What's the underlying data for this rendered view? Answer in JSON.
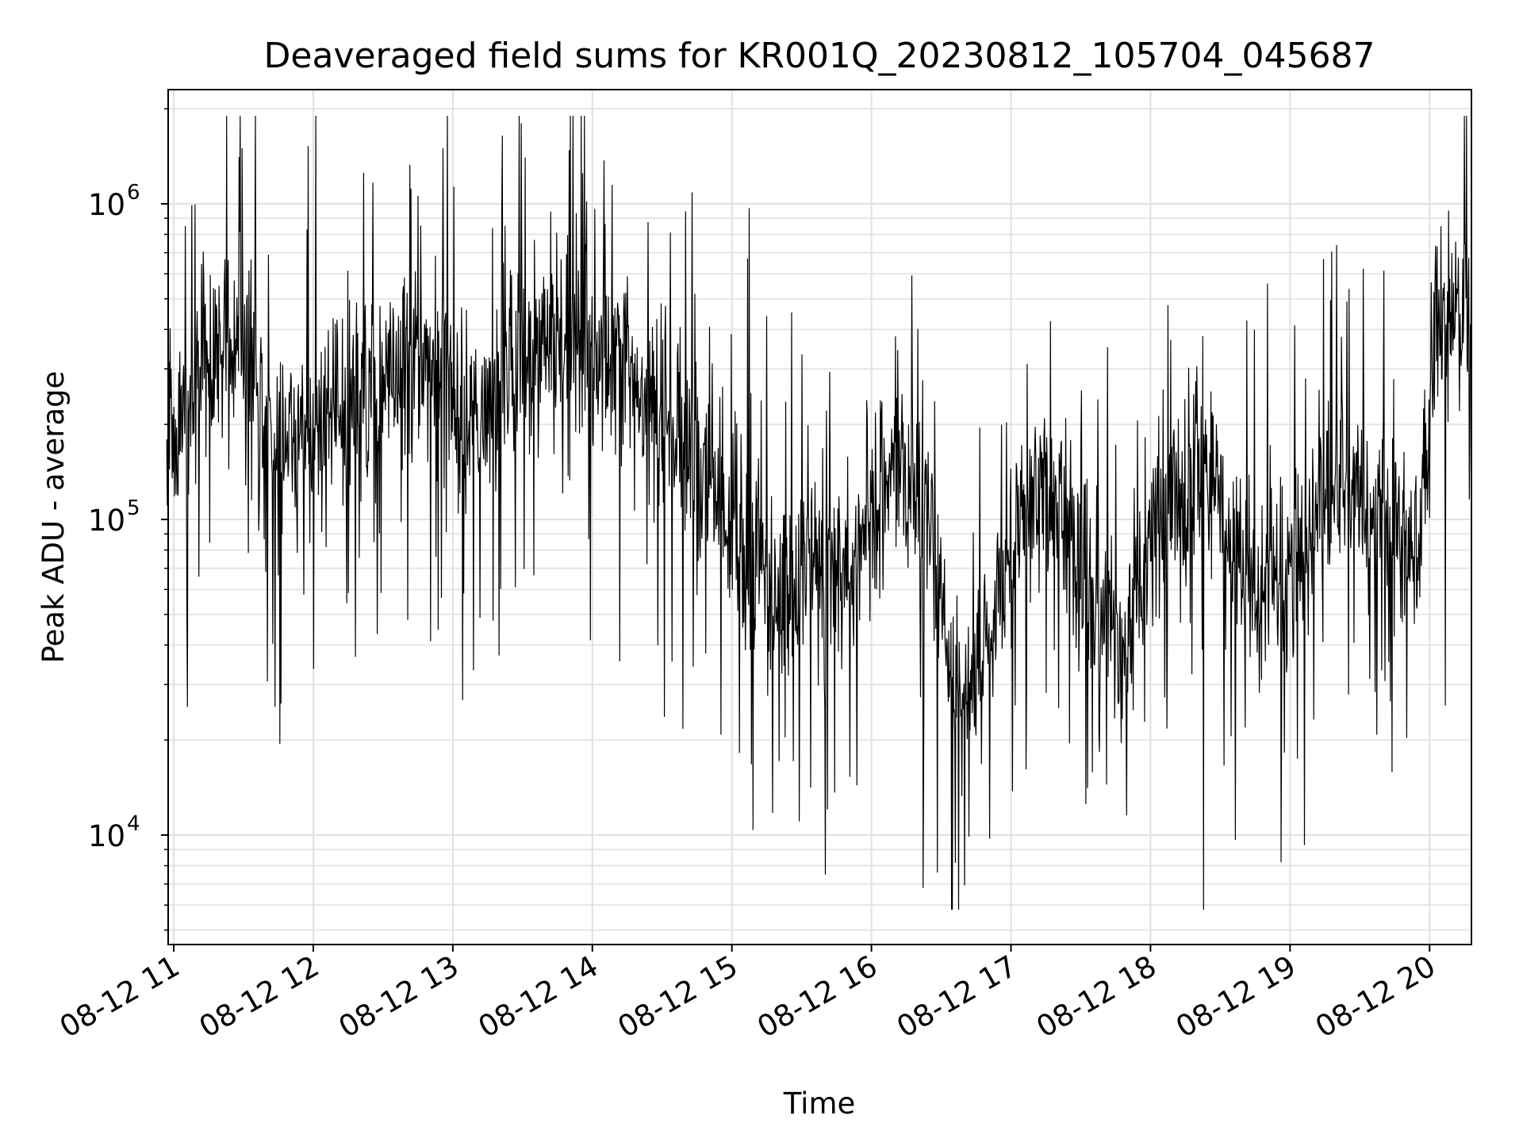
{
  "chart_data": {
    "type": "line",
    "title": "Deaveraged field sums for KR001Q_20230812_105704_045687",
    "xlabel": "Time",
    "ylabel": "Peak ADU - average",
    "yscale": "log",
    "ylim": [
      4500,
      2300000
    ],
    "xlim_hours": [
      10.96,
      20.3
    ],
    "grid": true,
    "x_ticks": [
      {
        "hour": 11,
        "label": "08-12 11"
      },
      {
        "hour": 12,
        "label": "08-12 12"
      },
      {
        "hour": 13,
        "label": "08-12 13"
      },
      {
        "hour": 14,
        "label": "08-12 14"
      },
      {
        "hour": 15,
        "label": "08-12 15"
      },
      {
        "hour": 16,
        "label": "08-12 16"
      },
      {
        "hour": 17,
        "label": "08-12 17"
      },
      {
        "hour": 18,
        "label": "08-12 18"
      },
      {
        "hour": 19,
        "label": "08-12 19"
      },
      {
        "hour": 20,
        "label": "08-12 20"
      }
    ],
    "y_ticks": [
      {
        "value": 10000,
        "base": "10",
        "exp": "4"
      },
      {
        "value": 100000,
        "base": "10",
        "exp": "5"
      },
      {
        "value": 1000000,
        "base": "10",
        "exp": "6"
      }
    ],
    "series": [
      {
        "name": "field sums",
        "color": "#000000",
        "x_start_hour": 10.95,
        "x_end_hour": 20.3,
        "trend": [
          {
            "hour": 10.95,
            "value": 180000
          },
          {
            "hour": 11.3,
            "value": 300000
          },
          {
            "hour": 11.5,
            "value": 400000
          },
          {
            "hour": 11.7,
            "value": 180000
          },
          {
            "hour": 12.0,
            "value": 200000
          },
          {
            "hour": 12.5,
            "value": 260000
          },
          {
            "hour": 12.9,
            "value": 350000
          },
          {
            "hour": 13.1,
            "value": 200000
          },
          {
            "hour": 13.5,
            "value": 330000
          },
          {
            "hour": 13.9,
            "value": 360000
          },
          {
            "hour": 14.2,
            "value": 300000
          },
          {
            "hour": 14.5,
            "value": 180000
          },
          {
            "hour": 14.8,
            "value": 140000
          },
          {
            "hour": 15.0,
            "value": 90000
          },
          {
            "hour": 15.3,
            "value": 60000
          },
          {
            "hour": 15.6,
            "value": 70000
          },
          {
            "hour": 15.9,
            "value": 80000
          },
          {
            "hour": 16.2,
            "value": 160000
          },
          {
            "hour": 16.4,
            "value": 100000
          },
          {
            "hour": 16.6,
            "value": 28000
          },
          {
            "hour": 16.8,
            "value": 35000
          },
          {
            "hour": 17.0,
            "value": 80000
          },
          {
            "hour": 17.3,
            "value": 130000
          },
          {
            "hour": 17.6,
            "value": 60000
          },
          {
            "hour": 17.8,
            "value": 35000
          },
          {
            "hour": 18.0,
            "value": 80000
          },
          {
            "hour": 18.3,
            "value": 150000
          },
          {
            "hour": 18.5,
            "value": 110000
          },
          {
            "hour": 18.8,
            "value": 60000
          },
          {
            "hour": 19.0,
            "value": 70000
          },
          {
            "hour": 19.3,
            "value": 110000
          },
          {
            "hour": 19.6,
            "value": 130000
          },
          {
            "hour": 19.9,
            "value": 70000
          },
          {
            "hour": 20.05,
            "value": 350000
          },
          {
            "hour": 20.3,
            "value": 500000
          }
        ],
        "notable_points": [
          {
            "hour": 11.49,
            "value": 1500000
          },
          {
            "hour": 12.93,
            "value": 1500000
          },
          {
            "hour": 13.49,
            "value": 1800000
          },
          {
            "hour": 13.93,
            "value": 1250000
          },
          {
            "hour": 15.67,
            "value": 7500
          },
          {
            "hour": 16.37,
            "value": 6800
          },
          {
            "hour": 16.58,
            "value": 5800
          },
          {
            "hour": 18.38,
            "value": 5800
          },
          {
            "hour": 20.3,
            "value": 1200000
          }
        ]
      }
    ]
  }
}
